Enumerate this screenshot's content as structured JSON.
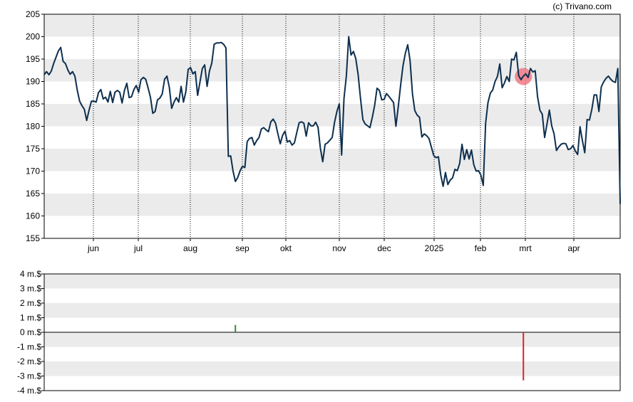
{
  "credit": "(c) Trivano.com",
  "colors": {
    "price_line": "#0d2f4f",
    "band": "#ebebeb",
    "marker": "#f07a85",
    "volume_up": "#2e8b3e",
    "volume_down": "#e0202a"
  },
  "chart_data": [
    {
      "type": "line",
      "title": "",
      "x_labels": [
        "jun",
        "jul",
        "aug",
        "sep",
        "okt",
        "nov",
        "dec",
        "2025",
        "feb",
        "mrt",
        "apr"
      ],
      "ylim": [
        155,
        205
      ],
      "y_ticks": [
        "155",
        "160",
        "165",
        "170",
        "175",
        "180",
        "185",
        "190",
        "195",
        "200",
        "205"
      ],
      "grid": "vertical dotted lines at month starts, alternating horizontal bands",
      "series": [
        {
          "values": [
            191.5,
            192.2,
            191.5,
            192.3,
            194.0,
            195.4,
            196.8,
            197.6,
            194.5,
            194.0,
            192.6,
            191.6,
            192.2,
            191.2,
            188.1,
            185.6,
            184.6,
            183.8,
            181.3,
            183.6,
            185.6,
            185.6,
            185.4,
            187.5,
            188.2,
            186.1,
            186.5,
            185.4,
            187.8,
            185.3,
            187.6,
            188.0,
            187.6,
            185.2,
            188.0,
            189.6,
            186.4,
            186.6,
            188.2,
            189.1,
            187.6,
            190.4,
            190.9,
            190.5,
            188.6,
            186.5,
            182.9,
            183.3,
            185.9,
            186.3,
            187.2,
            190.5,
            191.2,
            188.7,
            184.0,
            185.4,
            186.4,
            185.4,
            188.9,
            185.4,
            187.7,
            192.7,
            193.1,
            191.7,
            192.2,
            186.9,
            189.9,
            192.9,
            193.7,
            188.9,
            192.3,
            194.1,
            198.3,
            198.6,
            198.6,
            198.7,
            198.3,
            197.5,
            173.3,
            173.4,
            170.0,
            167.7,
            168.6,
            170.1,
            171.1,
            170.8,
            176.6,
            177.3,
            177.5,
            175.8,
            176.8,
            177.5,
            179.4,
            179.7,
            179.2,
            178.8,
            181.0,
            181.6,
            180.7,
            178.3,
            176.1,
            178.0,
            178.9,
            176.5,
            176.8,
            175.8,
            176.3,
            178.6,
            180.8,
            181.0,
            180.7,
            177.8,
            180.8,
            180.1,
            180.1,
            180.9,
            179.8,
            175.1,
            172.1,
            176.0,
            176.3,
            176.9,
            177.5,
            180.9,
            183.3,
            185.0,
            173.6,
            186.2,
            191.2,
            200.0,
            195.9,
            196.7,
            195.1,
            191.5,
            186.2,
            181.5,
            180.5,
            180.1,
            179.7,
            182.0,
            184.7,
            188.5,
            188.0,
            185.9,
            186.0,
            187.3,
            186.7,
            186.0,
            185.3,
            180.0,
            184.4,
            189.2,
            193.5,
            196.3,
            198.2,
            194.6,
            187.3,
            183.5,
            182.5,
            182.0,
            177.6,
            178.3,
            177.9,
            177.3,
            175.4,
            173.5,
            173.0,
            173.2,
            169.1,
            166.6,
            169.7,
            167.0,
            168.0,
            168.5,
            170.4,
            170.1,
            171.7,
            176.0,
            172.6,
            174.8,
            172.7,
            174.7,
            171.4,
            170.0,
            170.1,
            169.1,
            166.8,
            180.7,
            185.3,
            187.4,
            188.1,
            190.0,
            191.1,
            193.9,
            188.6,
            189.7,
            191.1,
            190.0,
            195.0,
            194.8,
            196.5,
            191.3,
            190.4,
            191.2,
            191.7,
            190.9,
            192.9,
            192.1,
            192.4,
            186.6,
            183.6,
            182.7,
            177.5,
            180.5,
            183.6,
            180.1,
            178.3,
            174.6,
            175.4,
            176.0,
            176.2,
            176.1,
            174.8,
            175.0,
            175.7,
            174.5,
            173.7,
            179.9,
            176.8,
            174.1,
            181.5,
            181.4,
            183.8,
            187.0,
            187.0,
            183.3,
            188.8,
            189.9,
            190.7,
            191.2,
            190.5,
            190.0,
            189.8,
            192.9,
            162.7
          ]
        }
      ],
      "marker": {
        "index": 203,
        "value": 191.1
      }
    },
    {
      "type": "bar",
      "title": "",
      "x_labels": [
        "jun",
        "jul",
        "aug",
        "sep",
        "okt",
        "nov",
        "dec",
        "2025",
        "feb",
        "mrt",
        "apr"
      ],
      "ylim": [
        -4,
        4
      ],
      "y_ticks": [
        "4 m.$",
        "3 m.$",
        "2 m.$",
        "1 m.$",
        "0 m.$",
        "-1 m.$",
        "-2 m.$",
        "-3 m.$",
        "-4 m.$"
      ],
      "bars": [
        {
          "index": 81,
          "value": 0.5
        },
        {
          "index": 203,
          "value": -3.3
        }
      ]
    }
  ]
}
